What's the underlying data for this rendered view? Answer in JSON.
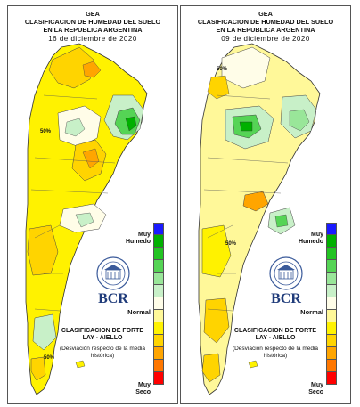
{
  "panels": [
    {
      "title1": "GEA",
      "title2": "CLASIFICACION DE HUMEDAD DEL SUELO",
      "title3": "EN LA REPUBLICA ARGENTINA",
      "date": "16 de diciembre de 2020",
      "contour_label": "50%"
    },
    {
      "title1": "GEA",
      "title2": "CLASIFICACION DE HUMEDAD DEL SUELO",
      "title3": "EN LA REPUBLICA ARGENTINA",
      "date": "09 de diciembre de 2020",
      "contour_label": "50%"
    }
  ],
  "legend": {
    "muy_humedo": "Muy\nHumedo",
    "normal": "Normal",
    "muy_seco": "Muy\nSeco",
    "colors": [
      "#1a1aff",
      "#00b000",
      "#22c422",
      "#55d455",
      "#99e699",
      "#c8f0c8",
      "#fffde8",
      "#fff899",
      "#fff200",
      "#ffd400",
      "#ffa500",
      "#ff7700",
      "#ff0000"
    ]
  },
  "branding": {
    "bcr": "BCR",
    "classification": "CLASIFICACION DE FORTE LAY - AIELLO",
    "description": "(Desviación respecto de la media histórica)"
  }
}
